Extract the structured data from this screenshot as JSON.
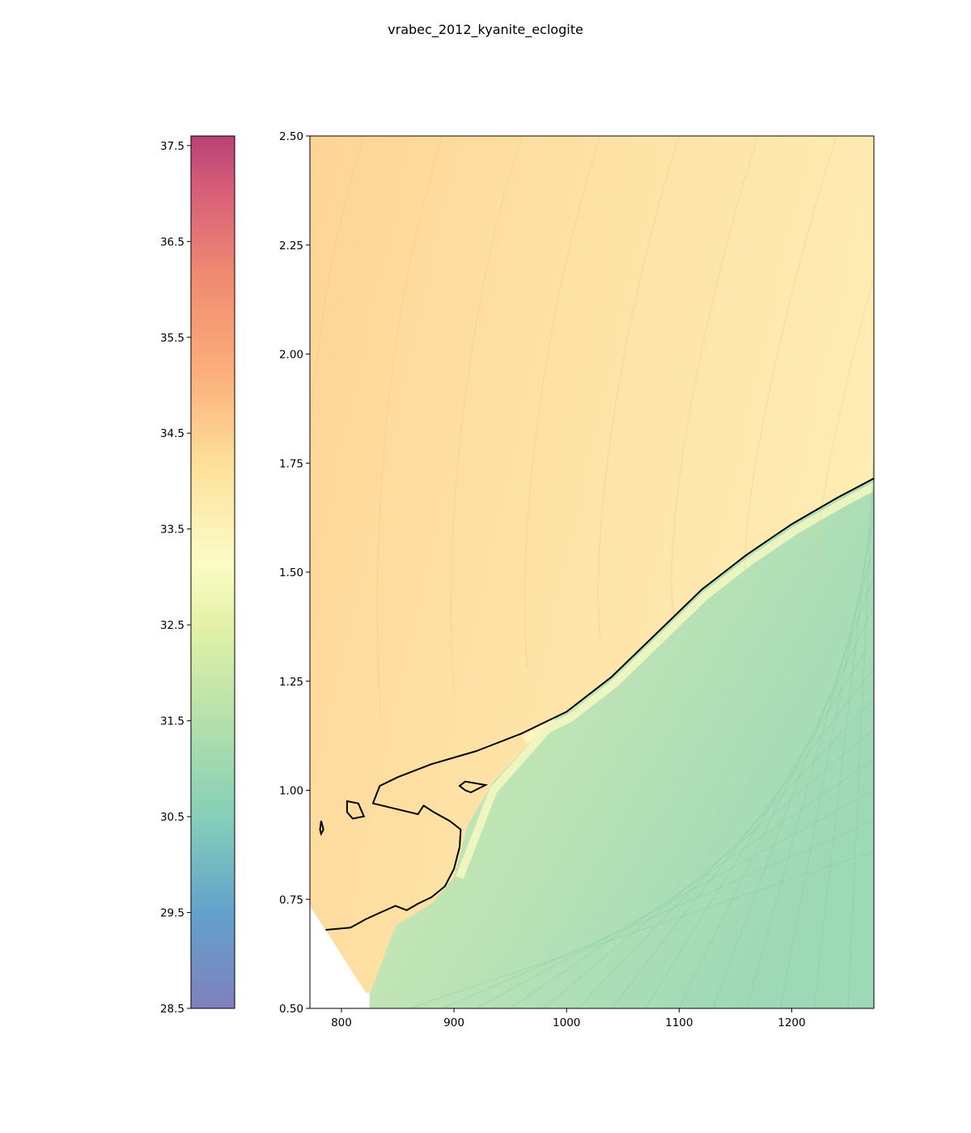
{
  "chart_data": {
    "type": "contour",
    "title": "vrabec_2012_kyanite_eclogite",
    "xlabel": "",
    "ylabel": "",
    "xlim": [
      772,
      1273
    ],
    "ylim": [
      0.5,
      2.5
    ],
    "x_ticks": [
      800,
      900,
      1000,
      1100,
      1200
    ],
    "y_ticks": [
      0.5,
      0.75,
      1.0,
      1.25,
      1.5,
      1.75,
      2.0,
      2.25,
      2.5
    ],
    "y_tick_labels": [
      "0.50",
      "0.75",
      "1.00",
      "1.25",
      "1.50",
      "1.75",
      "2.00",
      "2.25",
      "2.50"
    ],
    "colorbar": {
      "colormap": "Spectral_r",
      "range": [
        28.5,
        37.6
      ],
      "ticks": [
        28.5,
        29.5,
        30.5,
        31.5,
        32.5,
        33.5,
        34.5,
        35.5,
        36.5,
        37.5
      ],
      "tick_labels": [
        "28.5",
        "29.5",
        "30.5",
        "31.5",
        "32.5",
        "33.5",
        "34.5",
        "35.5",
        "36.5",
        "37.5"
      ]
    },
    "field_values": {
      "upper_left": 34.5,
      "upper_right": 33.7,
      "near_boundary_above": 33.9,
      "near_boundary_below": 33.0,
      "lower_right": 30.8
    },
    "boundary_line": [
      [
        786,
        0.68
      ],
      [
        808,
        0.685
      ],
      [
        822,
        0.705
      ],
      [
        835,
        0.72
      ],
      [
        848,
        0.735
      ],
      [
        858,
        0.725
      ],
      [
        868,
        0.74
      ],
      [
        880,
        0.755
      ],
      [
        892,
        0.78
      ],
      [
        900,
        0.82
      ],
      [
        905,
        0.87
      ],
      [
        906,
        0.91
      ],
      [
        896,
        0.93
      ],
      [
        882,
        0.95
      ],
      [
        873,
        0.965
      ],
      [
        868,
        0.945
      ],
      [
        828,
        0.97
      ],
      [
        834,
        1.01
      ],
      [
        850,
        1.03
      ],
      [
        880,
        1.06
      ],
      [
        920,
        1.09
      ],
      [
        960,
        1.13
      ],
      [
        1000,
        1.18
      ],
      [
        1040,
        1.26
      ],
      [
        1080,
        1.36
      ],
      [
        1120,
        1.46
      ],
      [
        1160,
        1.54
      ],
      [
        1200,
        1.61
      ],
      [
        1240,
        1.67
      ],
      [
        1273,
        1.715
      ]
    ],
    "boundary_islands": [
      [
        [
          805,
          0.975
        ],
        [
          815,
          0.97
        ],
        [
          820,
          0.94
        ],
        [
          810,
          0.935
        ],
        [
          805,
          0.95
        ]
      ],
      [
        [
          905,
          1.01
        ],
        [
          910,
          1.02
        ],
        [
          928,
          1.012
        ],
        [
          915,
          0.995
        ],
        [
          910,
          1.0
        ]
      ],
      [
        [
          781,
          0.91
        ],
        [
          782,
          0.93
        ],
        [
          784,
          0.91
        ],
        [
          782,
          0.9
        ]
      ]
    ]
  }
}
